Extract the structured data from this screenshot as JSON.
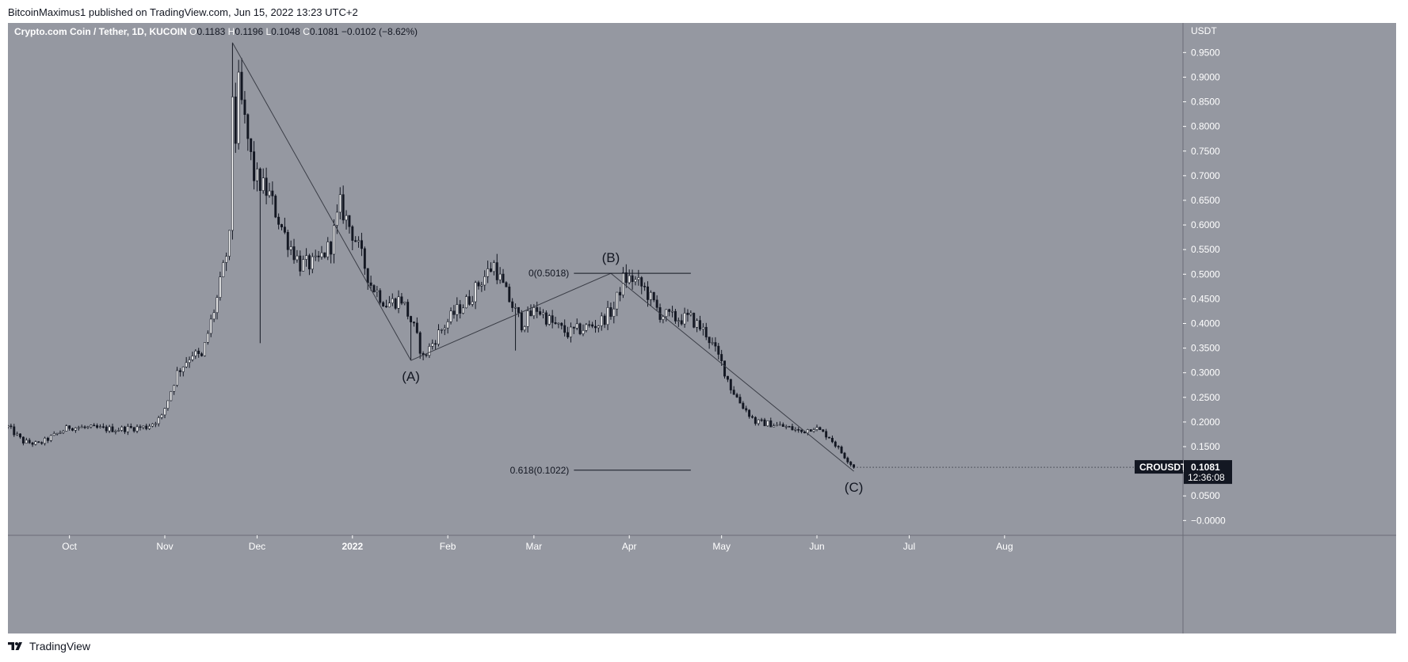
{
  "header": {
    "author": "BitcoinMaximus1",
    "published_text": "published on TradingView.com, Jun 15, 2022 13:23 UTC+2"
  },
  "footer": {
    "brand": "TradingView"
  },
  "colors": {
    "background": "#9598a1",
    "axis_bg": "#9598a1",
    "candle_up": "#ffffff",
    "candle_down": "#131722",
    "line": "#3a3d46",
    "price_tag_bg": "#131722"
  },
  "chart_data": {
    "type": "candlestick",
    "symbol_title": "Crypto.com Coin / Tether, 1D, KUCOIN",
    "ohlc_legend": {
      "open_label": "O",
      "open": "0.1183",
      "high_label": "H",
      "high": "0.1196",
      "low_label": "L",
      "low": "0.1048",
      "close_label": "C",
      "close": "0.1081",
      "change": "−0.0102 (−8.62%)"
    },
    "currency": "USDT",
    "y_axis": {
      "min": -0.03,
      "max": 1.01,
      "ticks": [
        "0.9500",
        "0.9000",
        "0.8500",
        "0.8000",
        "0.7500",
        "0.7000",
        "0.6500",
        "0.6000",
        "0.5500",
        "0.5000",
        "0.4500",
        "0.4000",
        "0.3500",
        "0.3000",
        "0.2500",
        "0.2000",
        "0.1500",
        "0.1000",
        "0.0500",
        "−0.0000"
      ],
      "tick_values": [
        0.95,
        0.9,
        0.85,
        0.8,
        0.75,
        0.7,
        0.65,
        0.6,
        0.55,
        0.5,
        0.45,
        0.4,
        0.35,
        0.3,
        0.25,
        0.2,
        0.15,
        0.1,
        0.05,
        0.0
      ]
    },
    "x_axis": {
      "labels": [
        "Oct",
        "Nov",
        "Dec",
        "2022",
        "Feb",
        "Mar",
        "Apr",
        "May",
        "Jun",
        "Jul",
        "Aug"
      ],
      "label_days": [
        20,
        51,
        81,
        112,
        143,
        171,
        202,
        232,
        263,
        293,
        324
      ],
      "bold_labels": [
        "2022"
      ],
      "day_range": [
        0,
        382
      ]
    },
    "price_tag": {
      "symbol": "CROUSDT",
      "value": "0.1081",
      "countdown": "12:36:08"
    },
    "anchors": {
      "days": [
        0,
        5,
        10,
        20,
        35,
        45,
        50,
        55,
        60,
        63,
        65,
        68,
        72,
        75,
        80,
        85,
        90,
        95,
        100,
        105,
        108,
        113,
        118,
        123,
        128,
        132,
        135,
        140,
        145,
        150,
        153,
        158,
        162,
        167,
        172,
        177,
        182,
        187,
        192,
        197,
        200,
        203,
        207,
        212,
        217,
        222,
        227,
        232,
        235,
        238,
        243,
        248,
        253,
        258,
        262,
        267,
        272,
        275
      ],
      "closes": [
        0.19,
        0.16,
        0.155,
        0.19,
        0.185,
        0.19,
        0.21,
        0.3,
        0.34,
        0.33,
        0.38,
        0.45,
        0.57,
        0.88,
        0.7,
        0.66,
        0.58,
        0.52,
        0.52,
        0.56,
        0.64,
        0.57,
        0.48,
        0.44,
        0.45,
        0.39,
        0.33,
        0.38,
        0.42,
        0.45,
        0.48,
        0.52,
        0.46,
        0.4,
        0.43,
        0.4,
        0.38,
        0.39,
        0.4,
        0.43,
        0.49,
        0.49,
        0.47,
        0.42,
        0.41,
        0.41,
        0.38,
        0.32,
        0.27,
        0.24,
        0.2,
        0.196,
        0.19,
        0.18,
        0.19,
        0.17,
        0.13,
        0.108
      ]
    },
    "peak": {
      "day": 73,
      "value": 0.97
    },
    "wave_labels": [
      {
        "text": "(A)",
        "day": 131,
        "value": 0.325
      },
      {
        "text": "(B)",
        "day": 196,
        "value": 0.5018
      },
      {
        "text": "(C)",
        "day": 275,
        "value": 0.1
      }
    ],
    "wave_lines": [
      {
        "from_day": 73,
        "from_value": 0.97,
        "to_day": 131,
        "to_value": 0.325
      },
      {
        "from_day": 131,
        "from_value": 0.325,
        "to_day": 196,
        "to_value": 0.5018
      },
      {
        "from_day": 196,
        "from_value": 0.5018,
        "to_day": 275,
        "to_value": 0.1
      }
    ],
    "fib_levels": [
      {
        "label": "0(0.5018)",
        "value": 0.5018,
        "from_day": 184,
        "to_day": 222
      },
      {
        "label": "0.618(0.1022)",
        "value": 0.1022,
        "from_day": 184,
        "to_day": 222
      }
    ]
  }
}
